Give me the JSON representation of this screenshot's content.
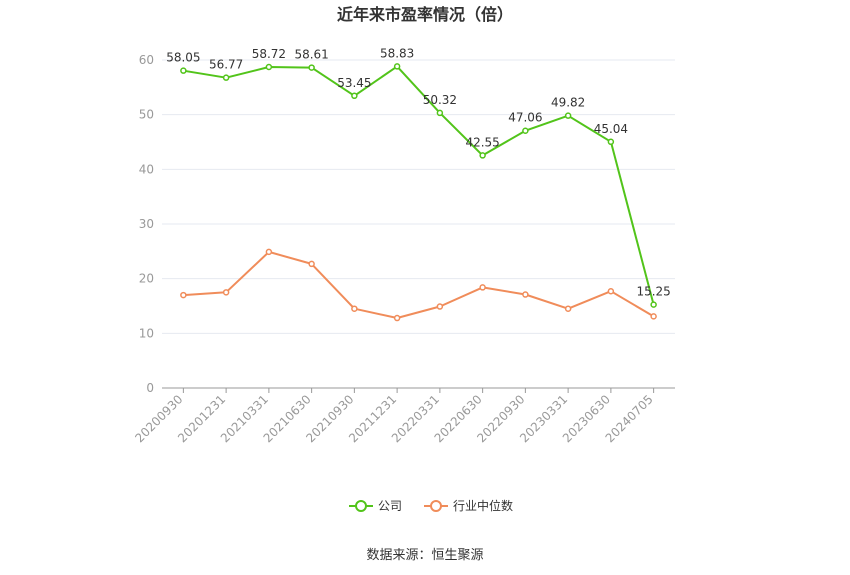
{
  "chart_data": {
    "type": "line",
    "title": "近年来市盈率情况（倍）",
    "categories": [
      "20200930",
      "20201231",
      "20210331",
      "20210630",
      "20210930",
      "20211231",
      "20220331",
      "20220630",
      "20220930",
      "20230331",
      "20230630",
      "20240705"
    ],
    "series": [
      {
        "name": "公司",
        "color": "#52c41a",
        "values": [
          58.05,
          56.77,
          58.72,
          58.61,
          53.45,
          58.83,
          50.32,
          42.55,
          47.06,
          49.82,
          45.04,
          15.25
        ],
        "labels": [
          "58.05",
          "56.77",
          "58.72",
          "58.61",
          "53.45",
          "58.83",
          "50.32",
          "42.55",
          "47.06",
          "49.82",
          "45.04",
          "15.25"
        ]
      },
      {
        "name": "行业中位数",
        "color": "#f08c5a",
        "values": [
          17.0,
          17.5,
          24.9,
          22.7,
          14.5,
          12.8,
          14.9,
          18.4,
          17.1,
          14.5,
          17.7,
          13.1
        ]
      }
    ],
    "ylim": [
      0,
      60
    ],
    "yticks": [
      "0",
      "10",
      "20",
      "30",
      "40",
      "50",
      "60"
    ],
    "grid": true,
    "legend": "bottom-center",
    "source": "数据来源：恒生聚源"
  }
}
